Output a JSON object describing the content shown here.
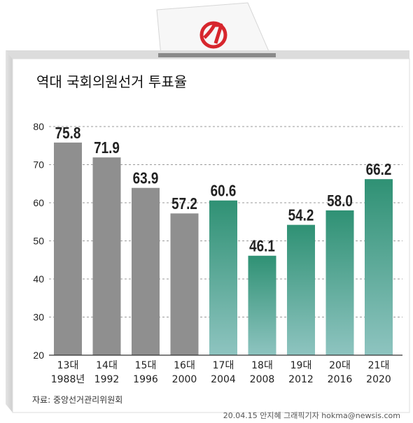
{
  "chart_data": {
    "type": "bar",
    "title": "역대 국회의원선거 투표율",
    "categories": [
      "13대",
      "14대",
      "15대",
      "16대",
      "17대",
      "18대",
      "19대",
      "20대",
      "21대"
    ],
    "years": [
      "1988년",
      "1992",
      "1996",
      "2000",
      "2004",
      "2008",
      "2012",
      "2016",
      "2020"
    ],
    "values": [
      75.8,
      71.9,
      63.9,
      57.2,
      60.6,
      46.1,
      54.2,
      58.0,
      66.2
    ],
    "value_labels": [
      "75.8",
      "71.9",
      "63.9",
      "57.2",
      "60.6",
      "46.1",
      "54.2",
      "58.0",
      "66.2"
    ],
    "yticks": [
      20,
      30,
      40,
      50,
      60,
      70,
      80
    ],
    "ylim": [
      20,
      80
    ],
    "grid": true,
    "xlabel": "",
    "ylabel": "",
    "colors": {
      "gray_bar": "#8f8f8f",
      "green_top": "#2f9174",
      "green_bottom": "#8ec4c0",
      "ballot_mark": "#d7262d"
    },
    "series_groups": [
      {
        "color_key": "gray",
        "count": 4
      },
      {
        "color_key": "green",
        "count": 5
      }
    ]
  },
  "source": "자료: 중앙선거관리위원회",
  "credit": "20.04.15 안지혜 그래픽기자 hokma@newsis.com"
}
